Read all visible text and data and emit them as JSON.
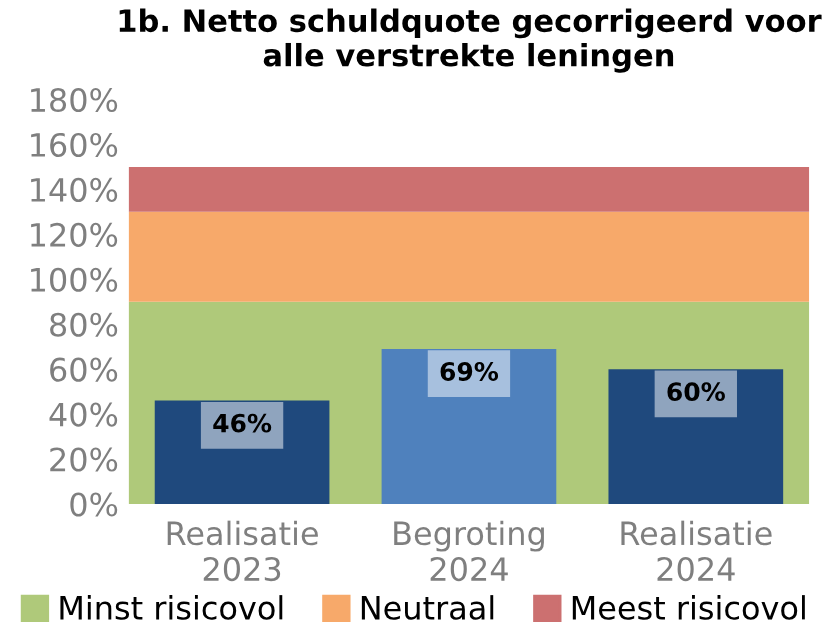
{
  "chart_data": {
    "type": "bar",
    "title": "1b. Netto schuldquote gecorrigeerd voor\nalle verstrekte leningen",
    "categories": [
      "Realisatie\n2023",
      "Begroting\n2024",
      "Realisatie\n2024"
    ],
    "values": [
      46,
      69,
      60
    ],
    "colors": [
      "#1f497d",
      "#4f81bd",
      "#1f497d"
    ],
    "value_labels": [
      "46%",
      "69%",
      "60%"
    ],
    "ylim": [
      0,
      180
    ],
    "yticks": [
      {
        "value": 0,
        "label": "0%"
      },
      {
        "value": 20,
        "label": "20%"
      },
      {
        "value": 40,
        "label": "40%"
      },
      {
        "value": 60,
        "label": "60%"
      },
      {
        "value": 80,
        "label": "80%"
      },
      {
        "value": 100,
        "label": "100%"
      },
      {
        "value": 120,
        "label": "120%"
      },
      {
        "value": 140,
        "label": "140%"
      },
      {
        "value": 160,
        "label": "160%"
      },
      {
        "value": 180,
        "label": "180%"
      }
    ],
    "bands": [
      {
        "axis": "y",
        "from": 0,
        "to": 90,
        "label": "Minst risicovol",
        "color": "#afc97a"
      },
      {
        "axis": "y",
        "from": 90,
        "to": 130,
        "label": "Neutraal",
        "color": "#f7a96a"
      },
      {
        "axis": "y",
        "from": 130,
        "to": 150,
        "label": "Meest risicovol",
        "color": "#cc7070"
      }
    ],
    "grid": false,
    "legend": "bottom"
  }
}
